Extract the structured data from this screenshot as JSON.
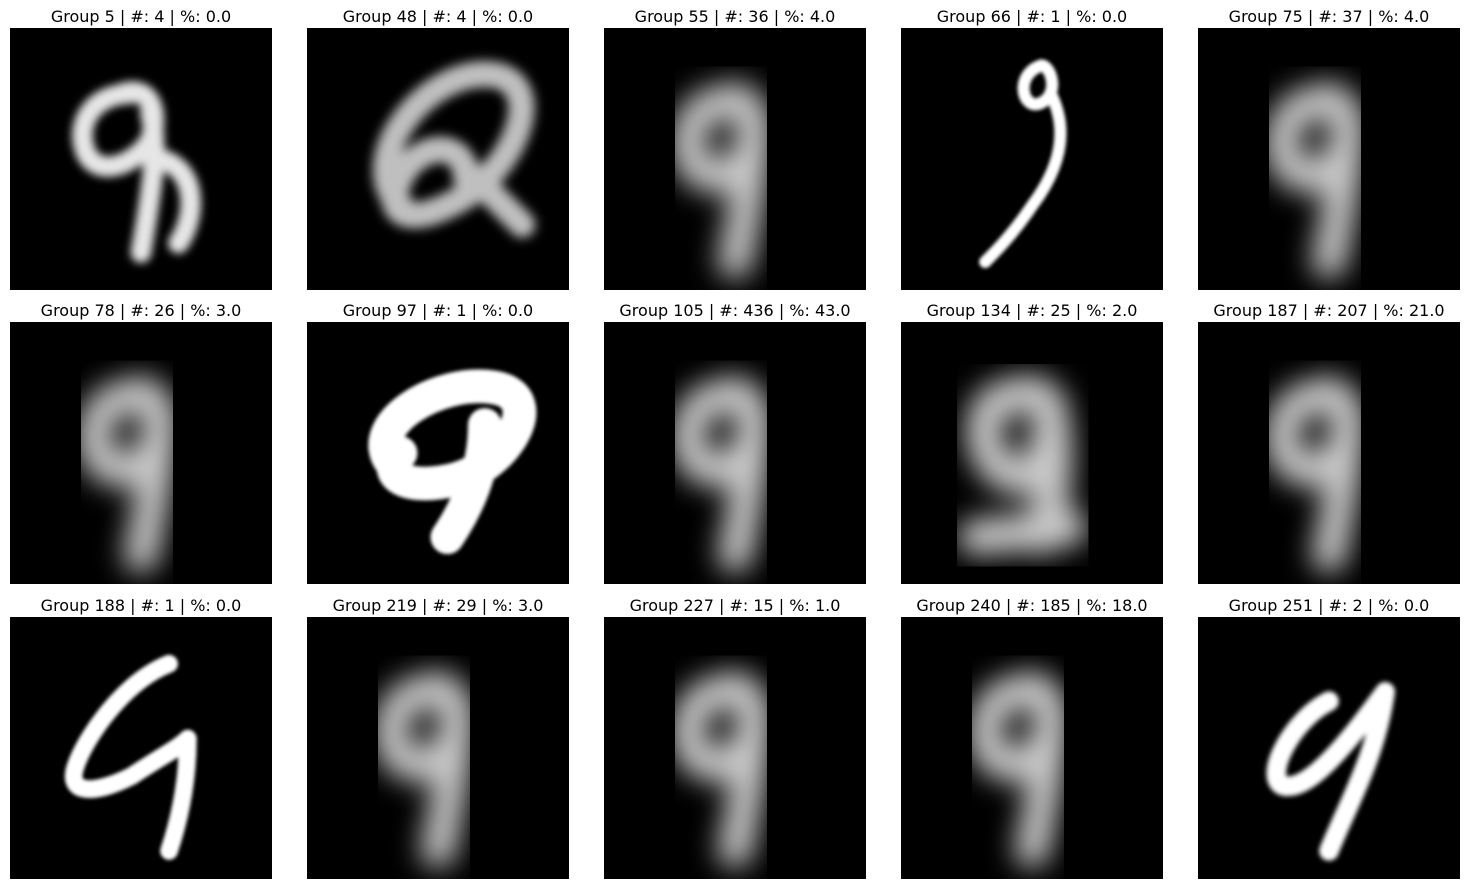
{
  "figure": {
    "panels": [
      {
        "title": "Group 5 | #: 4 | %: 0.0",
        "group": 5,
        "count": 4,
        "percent": 0.0,
        "content": "handwritten-9",
        "style": "sharp"
      },
      {
        "title": "Group 48 | #: 4 | %: 0.0",
        "group": 48,
        "count": 4,
        "percent": 0.0,
        "content": "handwritten-9",
        "style": "tilted-loop"
      },
      {
        "title": "Group 55 | #: 36 | %: 4.0",
        "group": 55,
        "count": 36,
        "percent": 4.0,
        "content": "handwritten-9",
        "style": "blurred"
      },
      {
        "title": "Group 66 | #: 1 | %: 0.0",
        "group": 66,
        "count": 1,
        "percent": 0.0,
        "content": "handwritten-9",
        "style": "thin"
      },
      {
        "title": "Group 75 | #: 37 | %: 4.0",
        "group": 75,
        "count": 37,
        "percent": 4.0,
        "content": "handwritten-9",
        "style": "blurred"
      },
      {
        "title": "Group 78 | #: 26 | %: 3.0",
        "group": 78,
        "count": 26,
        "percent": 3.0,
        "content": "handwritten-9",
        "style": "blurred"
      },
      {
        "title": "Group 97 | #: 1 | %: 0.0",
        "group": 97,
        "count": 1,
        "percent": 0.0,
        "content": "handwritten-9",
        "style": "bold-tilted"
      },
      {
        "title": "Group 105 | #: 436 | %: 43.0",
        "group": 105,
        "count": 436,
        "percent": 43.0,
        "content": "handwritten-9",
        "style": "blurred"
      },
      {
        "title": "Group 134 | #: 25 | %: 2.0",
        "group": 134,
        "count": 25,
        "percent": 2.0,
        "content": "handwritten-9",
        "style": "blurred-wide"
      },
      {
        "title": "Group 187 | #: 207 | %: 21.0",
        "group": 187,
        "count": 207,
        "percent": 21.0,
        "content": "handwritten-9",
        "style": "blurred"
      },
      {
        "title": "Group 188 | #: 1 | %: 0.0",
        "group": 188,
        "count": 1,
        "percent": 0.0,
        "content": "handwritten-9",
        "style": "sharp-open"
      },
      {
        "title": "Group 219 | #: 29 | %: 3.0",
        "group": 219,
        "count": 29,
        "percent": 3.0,
        "content": "handwritten-9",
        "style": "blurred"
      },
      {
        "title": "Group 227 | #: 15 | %: 1.0",
        "group": 227,
        "count": 15,
        "percent": 1.0,
        "content": "handwritten-9",
        "style": "blurred"
      },
      {
        "title": "Group 240 | #: 185 | %: 18.0",
        "group": 240,
        "count": 185,
        "percent": 18.0,
        "content": "handwritten-9",
        "style": "blurred"
      },
      {
        "title": "Group 251 | #: 2 | %: 0.0",
        "group": 251,
        "count": 2,
        "percent": 0.0,
        "content": "handwritten-9",
        "style": "sharp-slanted"
      }
    ]
  }
}
